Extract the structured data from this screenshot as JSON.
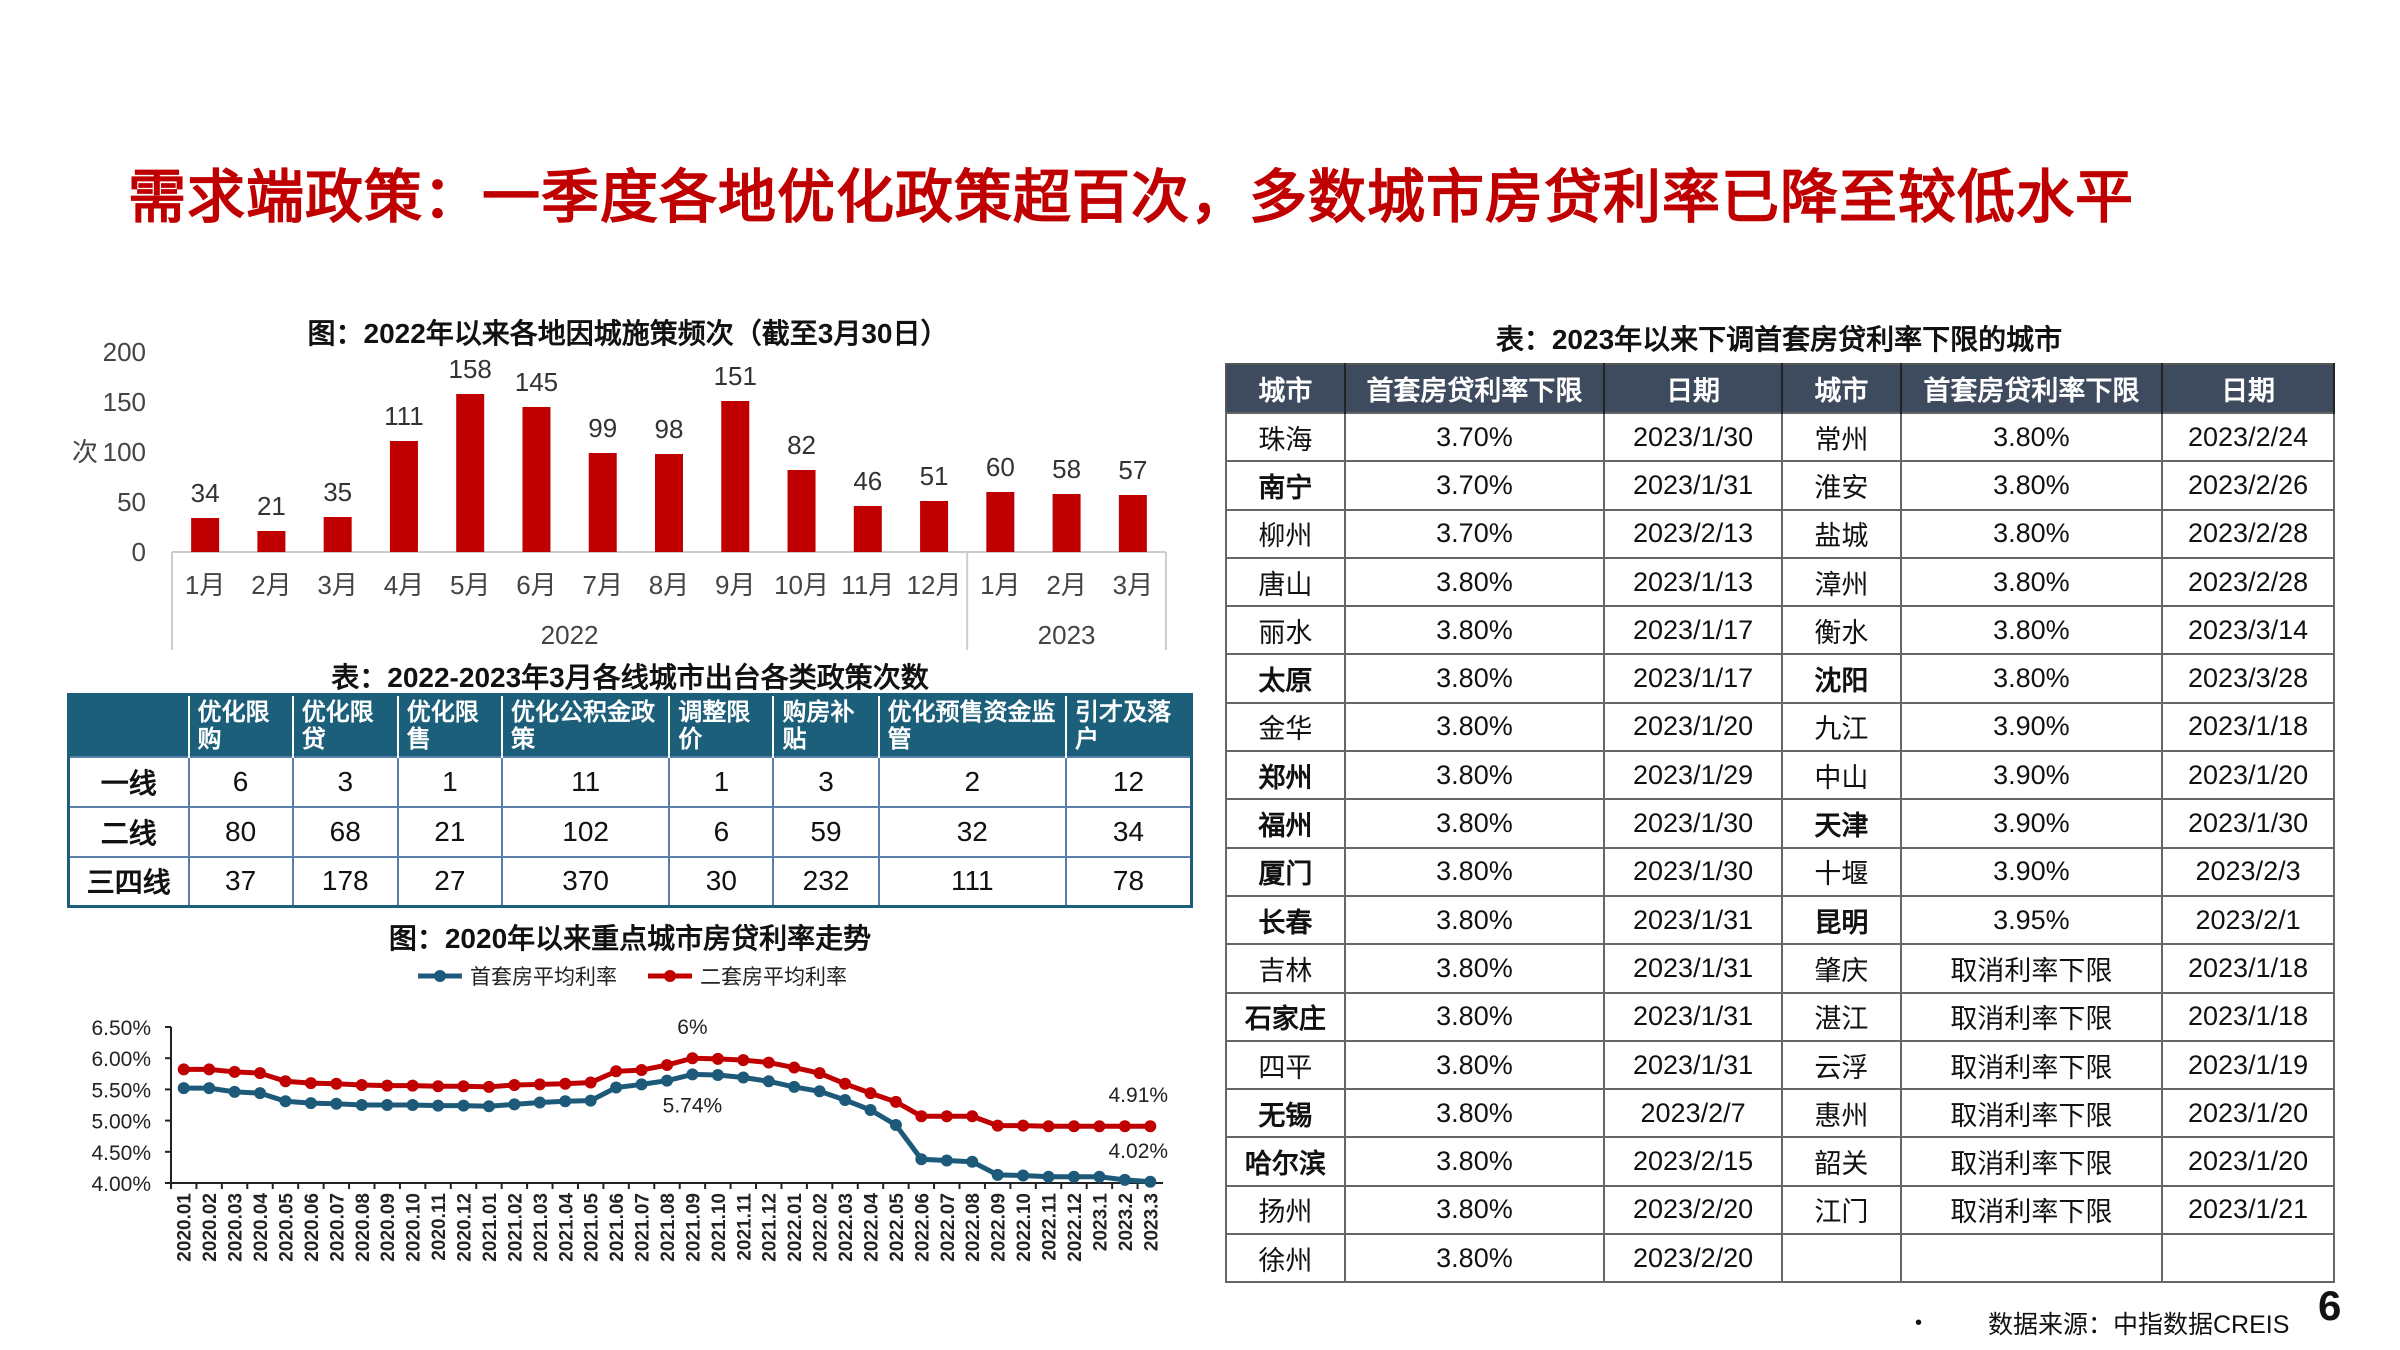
{
  "title": "需求端政策：一季度各地优化政策超百次，多数城市房贷利率已降至较低水平",
  "chart_data": [
    {
      "type": "bar",
      "title": "图：2022年以来各地因城施策频次（截至3月30日）",
      "ylabel": "次",
      "ylim": [
        0,
        200
      ],
      "yticks": [
        0,
        50,
        100,
        150,
        200
      ],
      "categories": [
        "1月",
        "2月",
        "3月",
        "4月",
        "5月",
        "6月",
        "7月",
        "8月",
        "9月",
        "10月",
        "11月",
        "12月",
        "1月",
        "2月",
        "3月"
      ],
      "groups": [
        {
          "label": "2022",
          "count": 12
        },
        {
          "label": "2023",
          "count": 3
        }
      ],
      "values": [
        34,
        21,
        35,
        111,
        158,
        145,
        99,
        98,
        151,
        82,
        46,
        51,
        60,
        58,
        57
      ],
      "color": "#c00000"
    },
    {
      "type": "line",
      "title": "图：2020年以来重点城市房贷利率走势",
      "ylim": [
        4.0,
        6.5
      ],
      "yticks": [
        "4.00%",
        "4.50%",
        "5.00%",
        "5.50%",
        "6.00%",
        "6.50%"
      ],
      "x": [
        "2020.01",
        "2020.02",
        "2020.03",
        "2020.04",
        "2020.05",
        "2020.06",
        "2020.07",
        "2020.08",
        "2020.09",
        "2020.10",
        "2020.11",
        "2020.12",
        "2021.01",
        "2021.02",
        "2021.03",
        "2021.04",
        "2021.05",
        "2021.06",
        "2021.07",
        "2021.08",
        "2021.09",
        "2021.10",
        "2021.11",
        "2021.12",
        "2022.01",
        "2022.02",
        "2022.03",
        "2022.04",
        "2022.05",
        "2022.06",
        "2022.07",
        "2022.08",
        "2022.09",
        "2022.10",
        "2022.11",
        "2022.12",
        "2023.1",
        "2023.2",
        "2023.3"
      ],
      "series": [
        {
          "name": "首套房平均利率",
          "color": "#1d5a7a",
          "values": [
            5.52,
            5.52,
            5.46,
            5.44,
            5.31,
            5.28,
            5.27,
            5.25,
            5.25,
            5.25,
            5.24,
            5.24,
            5.23,
            5.26,
            5.29,
            5.31,
            5.32,
            5.53,
            5.58,
            5.64,
            5.74,
            5.73,
            5.69,
            5.63,
            5.54,
            5.47,
            5.33,
            5.17,
            4.93,
            4.38,
            4.36,
            4.34,
            4.13,
            4.12,
            4.1,
            4.1,
            4.1,
            4.05,
            4.02
          ]
        },
        {
          "name": "二套房平均利率",
          "color": "#c00000",
          "values": [
            5.82,
            5.82,
            5.78,
            5.76,
            5.63,
            5.6,
            5.59,
            5.57,
            5.56,
            5.56,
            5.55,
            5.55,
            5.54,
            5.57,
            5.58,
            5.59,
            5.61,
            5.79,
            5.81,
            5.89,
            6.0,
            5.99,
            5.97,
            5.93,
            5.85,
            5.76,
            5.59,
            5.44,
            5.3,
            5.07,
            5.07,
            5.07,
            4.92,
            4.92,
            4.91,
            4.91,
            4.91,
            4.91,
            4.91
          ]
        }
      ],
      "annotations": [
        {
          "text": "6%",
          "series": 1,
          "index": 20
        },
        {
          "text": "5.74%",
          "series": 0,
          "index": 20
        },
        {
          "text": "4.91%",
          "series": 1,
          "index": 38
        },
        {
          "text": "4.02%",
          "series": 0,
          "index": 38
        }
      ]
    }
  ],
  "policy_table": {
    "title": "表：2022-2023年3月各线城市出台各类政策次数",
    "headers": [
      "",
      "优化限购",
      "优化限贷",
      "优化限售",
      "优化公积金政策",
      "调整限价",
      "购房补贴",
      "优化预售资金监管",
      "引才及落户"
    ],
    "rows": [
      [
        "一线",
        "6",
        "3",
        "1",
        "11",
        "1",
        "3",
        "2",
        "12"
      ],
      [
        "二线",
        "80",
        "68",
        "21",
        "102",
        "6",
        "59",
        "32",
        "34"
      ],
      [
        "三四线",
        "37",
        "178",
        "27",
        "370",
        "30",
        "232",
        "111",
        "78"
      ]
    ]
  },
  "rate_table": {
    "title": "表：2023年以来下调首套房贷利率下限的城市",
    "headers": [
      "城市",
      "首套房贷利率下限",
      "日期",
      "城市",
      "首套房贷利率下限",
      "日期"
    ],
    "rows": [
      [
        {
          "c": "珠海"
        },
        "3.70%",
        "2023/1/30",
        {
          "c": "常州"
        },
        "3.80%",
        "2023/2/24"
      ],
      [
        {
          "c": "南宁",
          "b": 1
        },
        "3.70%",
        "2023/1/31",
        {
          "c": "淮安"
        },
        "3.80%",
        "2023/2/26"
      ],
      [
        {
          "c": "柳州"
        },
        "3.70%",
        "2023/2/13",
        {
          "c": "盐城"
        },
        "3.80%",
        "2023/2/28"
      ],
      [
        {
          "c": "唐山"
        },
        "3.80%",
        "2023/1/13",
        {
          "c": "漳州"
        },
        "3.80%",
        "2023/2/28"
      ],
      [
        {
          "c": "丽水"
        },
        "3.80%",
        "2023/1/17",
        {
          "c": "衡水"
        },
        "3.80%",
        "2023/3/14"
      ],
      [
        {
          "c": "太原",
          "b": 1
        },
        "3.80%",
        "2023/1/17",
        {
          "c": "沈阳",
          "b": 1
        },
        "3.80%",
        "2023/3/28"
      ],
      [
        {
          "c": "金华"
        },
        "3.80%",
        "2023/1/20",
        {
          "c": "九江"
        },
        "3.90%",
        "2023/1/18"
      ],
      [
        {
          "c": "郑州",
          "b": 1
        },
        "3.80%",
        "2023/1/29",
        {
          "c": "中山"
        },
        "3.90%",
        "2023/1/20"
      ],
      [
        {
          "c": "福州",
          "b": 1
        },
        "3.80%",
        "2023/1/30",
        {
          "c": "天津",
          "b": 1
        },
        "3.90%",
        "2023/1/30"
      ],
      [
        {
          "c": "厦门",
          "b": 1
        },
        "3.80%",
        "2023/1/30",
        {
          "c": "十堰"
        },
        "3.90%",
        "2023/2/3"
      ],
      [
        {
          "c": "长春",
          "b": 1
        },
        "3.80%",
        "2023/1/31",
        {
          "c": "昆明",
          "b": 1
        },
        "3.95%",
        "2023/2/1"
      ],
      [
        {
          "c": "吉林"
        },
        "3.80%",
        "2023/1/31",
        {
          "c": "肇庆"
        },
        "取消利率下限",
        "2023/1/18"
      ],
      [
        {
          "c": "石家庄",
          "b": 1
        },
        "3.80%",
        "2023/1/31",
        {
          "c": "湛江"
        },
        "取消利率下限",
        "2023/1/18"
      ],
      [
        {
          "c": "四平"
        },
        "3.80%",
        "2023/1/31",
        {
          "c": "云浮"
        },
        "取消利率下限",
        "2023/1/19"
      ],
      [
        {
          "c": "无锡",
          "b": 1
        },
        "3.80%",
        "2023/2/7",
        {
          "c": "惠州"
        },
        "取消利率下限",
        "2023/1/20"
      ],
      [
        {
          "c": "哈尔滨",
          "b": 1
        },
        "3.80%",
        "2023/2/15",
        {
          "c": "韶关"
        },
        "取消利率下限",
        "2023/1/20"
      ],
      [
        {
          "c": "扬州"
        },
        "3.80%",
        "2023/2/20",
        {
          "c": "江门"
        },
        "取消利率下限",
        "2023/1/21"
      ],
      [
        {
          "c": "徐州"
        },
        "3.80%",
        "2023/2/20",
        {
          "c": ""
        },
        "",
        ""
      ]
    ]
  },
  "footer": {
    "source": "数据来源：中指数据CREIS",
    "bullet": "•",
    "page": "6"
  }
}
